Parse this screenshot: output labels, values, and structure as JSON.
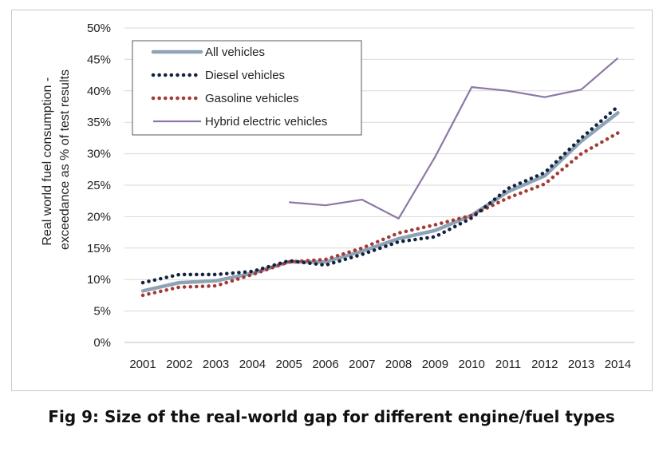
{
  "chart_data": {
    "type": "line",
    "title": "Fig 9: Size of the real-world gap for different engine/fuel types",
    "ylabel": [
      "Real world fuel consumption -",
      "exceedance as % of test results"
    ],
    "xlabel": "",
    "categories": [
      "2001",
      "2002",
      "2003",
      "2004",
      "2005",
      "2006",
      "2007",
      "2008",
      "2009",
      "2010",
      "2011",
      "2012",
      "2013",
      "2014"
    ],
    "y_ticks": [
      "0%",
      "5%",
      "10%",
      "15%",
      "20%",
      "25%",
      "30%",
      "35%",
      "40%",
      "45%",
      "50%"
    ],
    "ylim": [
      0,
      50
    ],
    "grid": "horizontal",
    "legend_position": "top-left",
    "series": [
      {
        "name": "All vehicles",
        "color": "#8fa3b6",
        "style": "solid-thick",
        "values": [
          8.2,
          9.5,
          9.8,
          11.0,
          12.8,
          12.8,
          14.5,
          16.5,
          17.8,
          20.2,
          24.0,
          26.5,
          32.0,
          36.5
        ]
      },
      {
        "name": "Diesel vehicles",
        "color": "#13233e",
        "style": "dotted",
        "values": [
          9.5,
          10.8,
          10.8,
          11.3,
          13.0,
          12.3,
          14.0,
          16.0,
          16.8,
          19.8,
          24.5,
          27.0,
          32.5,
          37.5
        ]
      },
      {
        "name": "Gasoline vehicles",
        "color": "#a33a36",
        "style": "dotted",
        "values": [
          7.5,
          8.8,
          9.0,
          10.8,
          12.8,
          13.2,
          15.0,
          17.4,
          18.7,
          20.2,
          23.0,
          25.2,
          30.0,
          33.3
        ]
      },
      {
        "name": "Hybrid electric vehicles",
        "color": "#8c77a4",
        "style": "solid-thin",
        "values": [
          null,
          null,
          null,
          null,
          22.3,
          21.8,
          22.7,
          19.7,
          29.5,
          40.6,
          40.0,
          39.0,
          40.2,
          45.2
        ]
      }
    ]
  }
}
